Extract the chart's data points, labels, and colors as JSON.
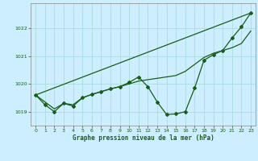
{
  "title": "Graphe pression niveau de la mer (hPa)",
  "bg_color": "#cceeff",
  "grid_color": "#aadddd",
  "line_color": "#1a5c1a",
  "xlim": [
    -0.5,
    23.5
  ],
  "ylim": [
    1018.5,
    1022.9
  ],
  "xticks": [
    0,
    1,
    2,
    3,
    4,
    5,
    6,
    7,
    8,
    9,
    10,
    11,
    12,
    13,
    14,
    15,
    16,
    17,
    18,
    19,
    20,
    21,
    22,
    23
  ],
  "yticks": [
    1019,
    1020,
    1021,
    1022
  ],
  "straight_line": [
    [
      0,
      1019.6
    ],
    [
      23,
      1022.55
    ]
  ],
  "series_smooth_x": [
    0,
    1,
    2,
    3,
    4,
    5,
    6,
    7,
    8,
    9,
    10,
    11,
    12,
    13,
    14,
    15,
    16,
    17,
    18,
    19,
    20,
    21,
    22,
    23
  ],
  "series_smooth": [
    1019.6,
    1019.35,
    1019.1,
    1019.3,
    1019.25,
    1019.5,
    1019.62,
    1019.72,
    1019.82,
    1019.9,
    1020.0,
    1020.1,
    1020.15,
    1020.2,
    1020.25,
    1020.3,
    1020.45,
    1020.7,
    1020.95,
    1021.1,
    1021.2,
    1021.3,
    1021.45,
    1021.9
  ],
  "series_data_x": [
    0,
    1,
    2,
    3,
    4,
    5,
    6,
    7,
    8,
    9,
    10,
    11,
    12,
    13,
    14,
    15,
    16,
    17,
    18,
    19,
    20,
    21,
    22,
    23
  ],
  "series_data": [
    1019.6,
    1019.25,
    1019.0,
    1019.3,
    1019.2,
    1019.5,
    1019.62,
    1019.72,
    1019.82,
    1019.9,
    1020.05,
    1020.25,
    1019.9,
    1019.35,
    1018.9,
    1018.92,
    1019.0,
    1019.85,
    1020.85,
    1021.05,
    1021.2,
    1021.65,
    1022.05,
    1022.55
  ]
}
